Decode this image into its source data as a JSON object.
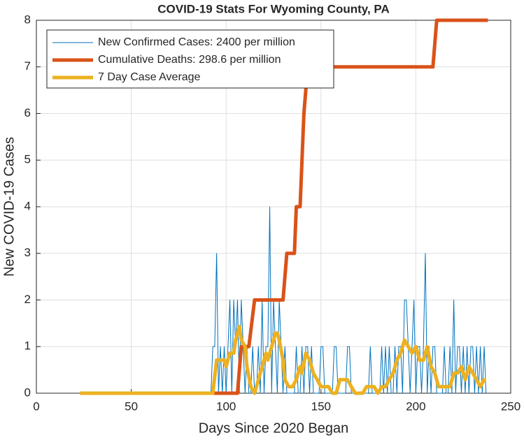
{
  "chart_data": {
    "type": "line",
    "title": "COVID-19 Stats For Wyoming County, PA",
    "xlabel": "Days Since 2020 Began",
    "ylabel": "New COVID-19 Cases",
    "xlim": [
      0,
      250
    ],
    "xticks": [
      0,
      50,
      100,
      150,
      200,
      250
    ],
    "ylim": [
      0,
      8
    ],
    "yticks": [
      0,
      1,
      2,
      3,
      4,
      5,
      6,
      7,
      8
    ],
    "grid": true,
    "legend": "upper left",
    "series": [
      {
        "name": "New Confirmed Cases: 2400 per million",
        "color": "#0072bd",
        "x": [
          23,
          92,
          93,
          94,
          95,
          96,
          97,
          98,
          99,
          100,
          101,
          102,
          103,
          104,
          105,
          106,
          107,
          108,
          109,
          110,
          111,
          112,
          113,
          114,
          115,
          116,
          117,
          118,
          119,
          120,
          121,
          122,
          123,
          124,
          125,
          126,
          127,
          128,
          129,
          130,
          131,
          132,
          133,
          134,
          135,
          136,
          137,
          138,
          139,
          140,
          141,
          142,
          143,
          144,
          145,
          146,
          147,
          148,
          149,
          150,
          151,
          152,
          153,
          154,
          155,
          156,
          157,
          158,
          159,
          160,
          161,
          162,
          163,
          164,
          165,
          166,
          167,
          168,
          169,
          170,
          171,
          172,
          173,
          174,
          175,
          176,
          177,
          178,
          179,
          180,
          181,
          182,
          183,
          184,
          185,
          186,
          187,
          188,
          189,
          190,
          191,
          192,
          193,
          194,
          195,
          196,
          197,
          198,
          199,
          200,
          201,
          202,
          203,
          204,
          205,
          206,
          207,
          208,
          209,
          210,
          211,
          212,
          213,
          214,
          215,
          216,
          217,
          218,
          219,
          220,
          221,
          222,
          223,
          224,
          225,
          226,
          227,
          228,
          229,
          230,
          231,
          232,
          233,
          234,
          235,
          236,
          237
        ],
        "values": [
          0,
          0,
          1,
          1,
          3,
          0,
          1,
          0,
          1,
          0,
          1,
          2,
          0,
          2,
          1,
          2,
          0,
          2,
          1,
          0,
          1,
          0,
          0,
          1,
          0,
          0,
          1,
          0,
          2,
          0,
          1,
          1,
          4,
          0,
          2,
          1,
          0,
          2,
          1,
          0,
          1,
          0,
          0,
          0,
          0,
          0,
          1,
          0,
          0,
          1,
          0,
          1,
          1,
          0,
          1,
          0,
          0,
          0,
          0,
          1,
          1,
          0,
          0,
          0,
          0,
          0,
          1,
          1,
          0,
          0,
          0,
          0,
          0,
          1,
          1,
          0,
          0,
          0,
          0,
          0,
          0,
          0,
          0,
          0,
          0,
          1,
          0,
          0,
          0,
          0,
          0,
          1,
          0,
          1,
          0,
          1,
          0,
          0,
          1,
          0,
          1,
          1,
          0,
          2,
          2,
          1,
          0,
          1,
          2,
          0,
          1,
          1,
          0,
          1,
          3,
          0,
          1,
          0,
          1,
          1,
          0,
          0,
          0,
          0,
          1,
          0,
          0,
          1,
          0,
          2,
          0,
          1,
          1,
          0,
          1,
          0,
          1,
          0,
          1,
          1,
          0,
          1,
          0,
          1,
          0,
          1,
          0
        ]
      },
      {
        "name": "Cumulative Deaths: 298.6 per million",
        "color": "#d95319",
        "x": [
          23,
          106,
          108,
          112,
          115,
          130,
          132,
          136,
          137,
          139,
          140,
          141,
          143,
          209,
          211,
          238
        ],
        "values": [
          0,
          0,
          1,
          1,
          2,
          2,
          3,
          3,
          4,
          4,
          5,
          6,
          7,
          7,
          8,
          8
        ]
      },
      {
        "name": "7 Day Case Average",
        "color": "#edb120",
        "x": [
          23,
          93,
          95,
          99,
          100,
          102,
          104,
          105,
          107,
          108,
          110,
          111,
          113,
          115,
          117,
          119,
          121,
          122,
          124,
          126,
          127,
          128,
          130,
          131,
          133,
          135,
          137,
          139,
          140,
          142,
          144,
          146,
          148,
          150,
          152,
          154,
          156,
          158,
          160,
          164,
          166,
          168,
          172,
          174,
          178,
          180,
          182,
          184,
          186,
          188,
          190,
          192,
          194,
          196,
          198,
          200,
          202,
          204,
          206,
          208,
          210,
          212,
          218,
          220,
          222,
          224,
          226,
          228,
          230,
          232,
          234,
          236,
          237
        ],
        "values": [
          0,
          0,
          0.71,
          0.71,
          0.57,
          0.86,
          0.86,
          1.14,
          1.43,
          1.14,
          1,
          0.57,
          0.14,
          0,
          0.29,
          0.57,
          0.86,
          0.71,
          1,
          1.29,
          1.29,
          1.14,
          0.71,
          0.29,
          0.14,
          0.14,
          0.29,
          0.57,
          0.43,
          0.86,
          0.71,
          0.43,
          0.29,
          0.14,
          0.14,
          0.14,
          0,
          0,
          0.29,
          0.29,
          0.14,
          0,
          0,
          0.14,
          0.14,
          0,
          0.14,
          0.14,
          0.29,
          0.43,
          0.71,
          0.86,
          1.14,
          1,
          0.86,
          1,
          0.71,
          0.71,
          1,
          0.57,
          0.43,
          0.14,
          0.14,
          0.43,
          0.43,
          0.57,
          0.29,
          0.57,
          0.43,
          0.29,
          0.14,
          0.29,
          0.29
        ]
      }
    ]
  }
}
